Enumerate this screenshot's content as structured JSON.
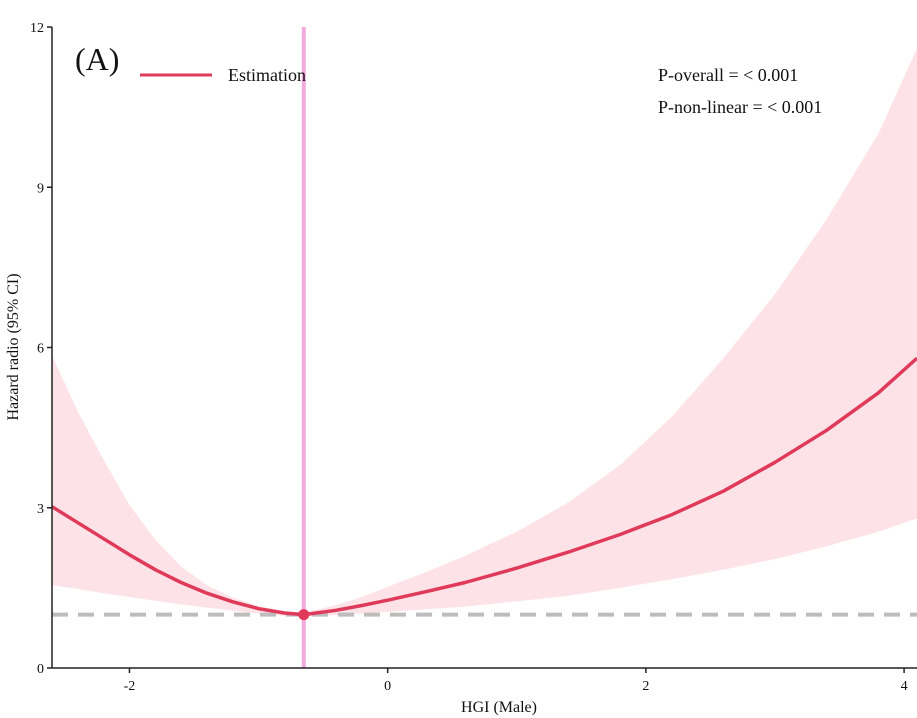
{
  "chart_data": {
    "type": "line",
    "panel_label": "(A)",
    "xlabel": "HGI (Male)",
    "ylabel": "Hazard  radio (95% CI)",
    "xlim": [
      -2.6,
      4.1
    ],
    "ylim": [
      0,
      12
    ],
    "xticks": [
      -2,
      0,
      2,
      4
    ],
    "yticks": [
      0,
      3,
      6,
      9,
      12
    ],
    "grid": false,
    "legend": {
      "position": "top-left",
      "entries": [
        {
          "label": "Estimation"
        }
      ]
    },
    "annotations": [
      "P-overall = < 0.001",
      "P-non-linear = < 0.001"
    ],
    "reference_line_y": 1,
    "vertical_line_x": -0.65,
    "reference_point": {
      "x": -0.65,
      "y": 1.0
    },
    "series": [
      {
        "name": "Estimation",
        "x": [
          -2.6,
          -2.4,
          -2.2,
          -2.0,
          -1.8,
          -1.6,
          -1.4,
          -1.2,
          -1.0,
          -0.8,
          -0.65,
          -0.4,
          -0.2,
          0.0,
          0.3,
          0.6,
          1.0,
          1.4,
          1.8,
          2.2,
          2.6,
          3.0,
          3.4,
          3.8,
          4.1
        ],
        "y": [
          3.02,
          2.72,
          2.42,
          2.12,
          1.84,
          1.6,
          1.4,
          1.24,
          1.11,
          1.03,
          1.0,
          1.08,
          1.17,
          1.27,
          1.43,
          1.6,
          1.87,
          2.17,
          2.5,
          2.87,
          3.31,
          3.85,
          4.45,
          5.15,
          5.8
        ],
        "lower": [
          1.55,
          1.48,
          1.4,
          1.33,
          1.26,
          1.19,
          1.13,
          1.07,
          1.02,
          0.98,
          0.96,
          0.99,
          1.02,
          1.05,
          1.1,
          1.15,
          1.25,
          1.35,
          1.5,
          1.66,
          1.84,
          2.04,
          2.28,
          2.55,
          2.8
        ],
        "upper": [
          5.85,
          4.8,
          3.9,
          3.05,
          2.4,
          1.9,
          1.55,
          1.32,
          1.16,
          1.06,
          1.03,
          1.18,
          1.33,
          1.52,
          1.8,
          2.1,
          2.55,
          3.1,
          3.8,
          4.7,
          5.8,
          7.0,
          8.4,
          10.0,
          11.6
        ]
      }
    ],
    "colors": {
      "line": "#e03a5a",
      "band": "#fde3e7",
      "vline": "#f4a9de",
      "refline": "#bdbdbd",
      "axis": "#222222"
    }
  }
}
